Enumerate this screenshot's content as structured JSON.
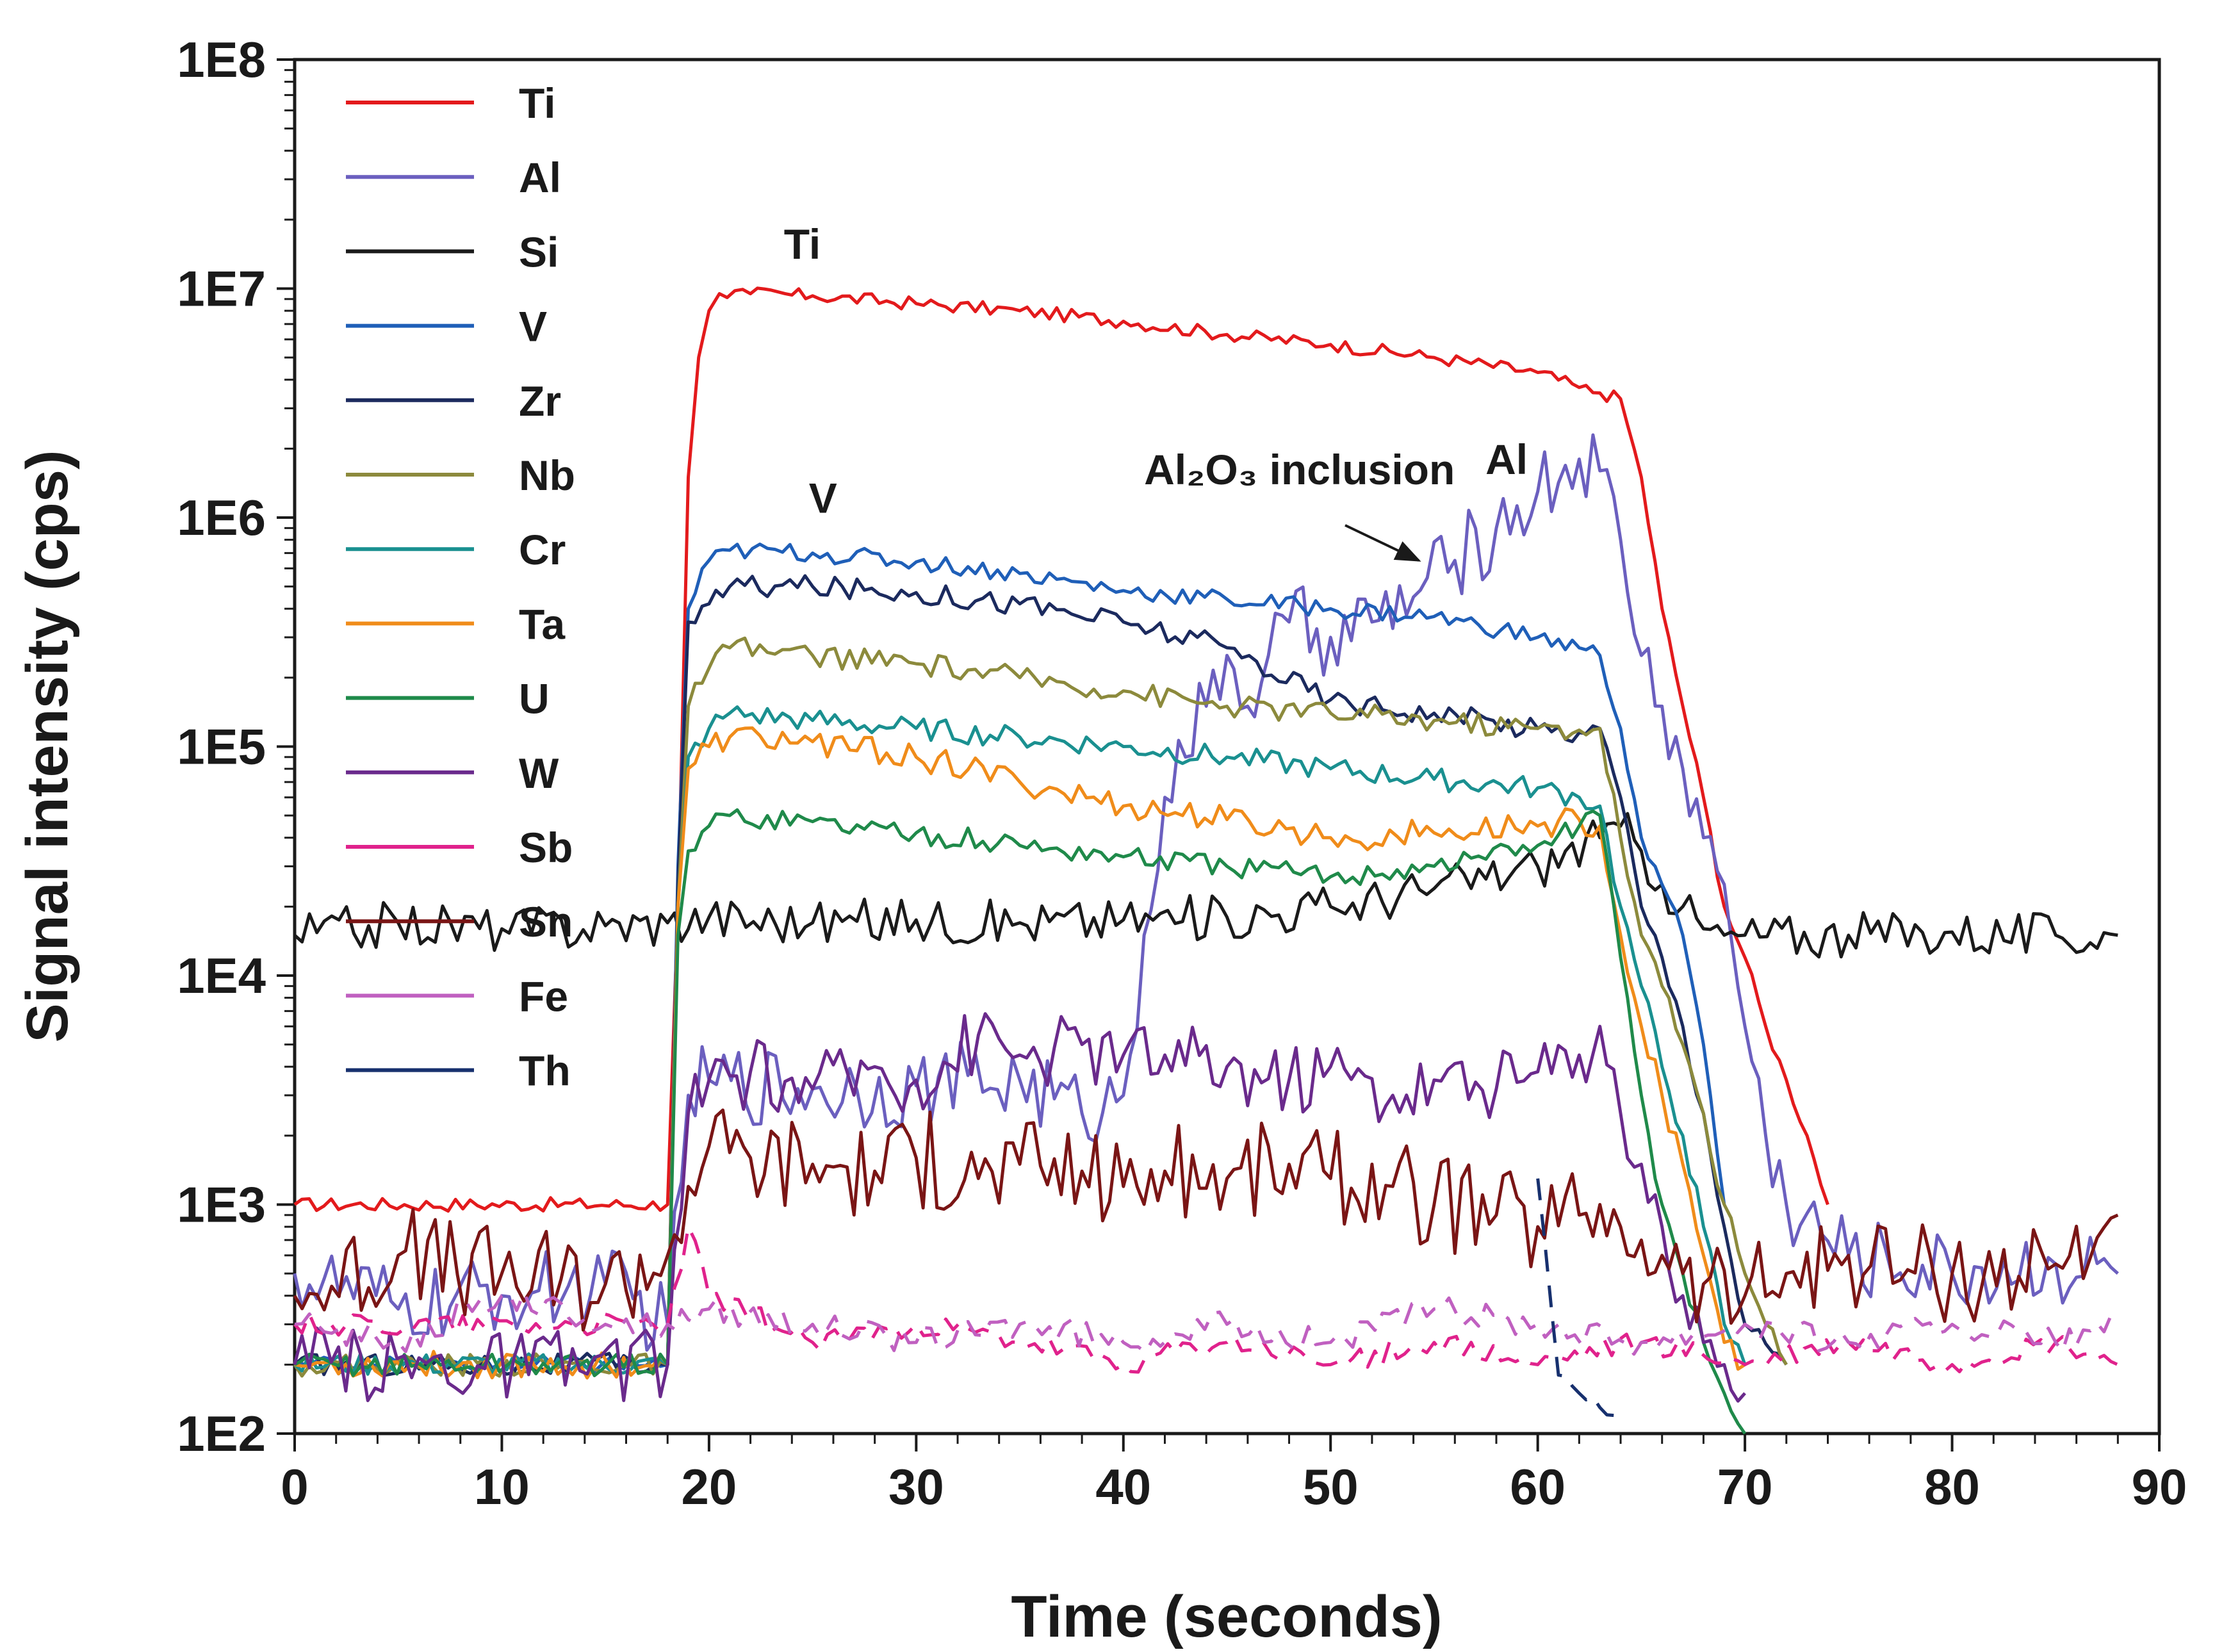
{
  "chart_data": {
    "type": "line",
    "title": "",
    "xlabel": "Time (seconds)",
    "ylabel": "Signal intensity (cps)",
    "xlim": [
      0,
      90
    ],
    "ylim": [
      100,
      100000000
    ],
    "yscale": "log",
    "x_ticks": [
      0,
      10,
      20,
      30,
      40,
      50,
      60,
      70,
      80,
      90
    ],
    "x_tick_labels": [
      "0",
      "10",
      "20",
      "30",
      "40",
      "50",
      "60",
      "70",
      "80",
      "90"
    ],
    "y_ticks": [
      100,
      1000,
      10000,
      100000,
      1000000,
      10000000,
      100000000
    ],
    "y_tick_labels": [
      "1E2",
      "1E3",
      "1E4",
      "1E5",
      "1E6",
      "1E7",
      "1E8"
    ],
    "legend_position": "top-left inside",
    "series": [
      {
        "name": "Ti",
        "color": "#e31a1c",
        "x": [
          0,
          18,
          18.5,
          19,
          19.5,
          20,
          20.5,
          22,
          25,
          30,
          35,
          40,
          45,
          50,
          55,
          60,
          62,
          63,
          64,
          65,
          66,
          67,
          68,
          69,
          70,
          71,
          72,
          73,
          74
        ],
        "values": [
          1000,
          1000,
          20000,
          1500000,
          5000000,
          8000000,
          9500000,
          9500000,
          9300000,
          8600000,
          8000000,
          7200000,
          6300000,
          5700000,
          5000000,
          4300000,
          3700000,
          3500000,
          3300000,
          1500000,
          400000,
          150000,
          60000,
          20000,
          12000,
          6000,
          3500,
          2000,
          1000
        ]
      },
      {
        "name": "Al",
        "color": "#6b5fbf",
        "x": [
          0,
          5,
          10,
          15,
          18,
          19,
          20,
          25,
          30,
          35,
          38,
          40,
          41,
          42,
          43,
          44,
          45,
          46,
          47,
          48,
          50,
          52,
          54,
          56,
          58,
          60,
          62,
          63,
          64,
          65,
          66,
          67,
          68,
          69,
          70,
          71,
          72,
          75,
          80,
          85,
          88
        ],
        "values": [
          500,
          350,
          400,
          450,
          300,
          3000,
          3500,
          3200,
          3300,
          3500,
          2500,
          3000,
          15000,
          60000,
          90000,
          150000,
          250000,
          150000,
          250000,
          350000,
          300000,
          350000,
          450000,
          650000,
          900000,
          1300000,
          1800000,
          1600000,
          800000,
          250000,
          150000,
          80000,
          40000,
          25000,
          6000,
          2000,
          1000,
          600,
          500,
          550,
          500
        ]
      },
      {
        "name": "Si",
        "color": "#1a1a1a",
        "x": [
          0,
          5,
          10,
          15,
          18,
          20,
          25,
          30,
          35,
          40,
          45,
          50,
          55,
          60,
          63,
          64,
          65,
          66,
          67,
          68,
          69,
          70,
          75,
          80,
          85,
          88
        ],
        "values": [
          15000,
          17000,
          16000,
          16500,
          17000,
          18000,
          17000,
          17500,
          17000,
          17500,
          18000,
          20000,
          24000,
          30000,
          40000,
          45000,
          35000,
          25000,
          20000,
          16000,
          15000,
          15000,
          15000,
          15500,
          15000,
          15000
        ]
      },
      {
        "name": "V",
        "color": "#1f5fb8",
        "x": [
          0,
          18,
          18.5,
          19,
          20,
          21,
          25,
          30,
          35,
          40,
          45,
          50,
          55,
          60,
          62,
          63,
          64,
          65,
          66,
          67,
          68,
          69
        ],
        "values": [
          200,
          200,
          30000,
          400000,
          650000,
          720000,
          700000,
          640000,
          570000,
          480000,
          440000,
          400000,
          370000,
          300000,
          270000,
          250000,
          120000,
          40000,
          25000,
          15000,
          5000,
          1000
        ]
      },
      {
        "name": "Zr",
        "color": "#1b2a5e",
        "x": [
          0,
          18,
          18.5,
          19,
          20,
          21,
          25,
          30,
          35,
          40,
          45,
          50,
          55,
          60,
          62,
          63,
          64,
          65,
          66,
          67,
          68,
          69,
          70,
          72
        ],
        "values": [
          200,
          200,
          25000,
          350000,
          420000,
          500000,
          500000,
          470000,
          420000,
          350000,
          270000,
          160000,
          140000,
          120000,
          115000,
          120000,
          60000,
          20000,
          12000,
          6000,
          2500,
          800,
          300,
          200
        ]
      },
      {
        "name": "Nb",
        "color": "#8c8a3c",
        "x": [
          0,
          18,
          18.5,
          19,
          20,
          21,
          25,
          30,
          35,
          40,
          45,
          50,
          55,
          60,
          62,
          63,
          64,
          65,
          66,
          67,
          68,
          69,
          70,
          71,
          72
        ],
        "values": [
          200,
          200,
          20000,
          150000,
          220000,
          270000,
          250000,
          230000,
          200000,
          175000,
          150000,
          140000,
          130000,
          120000,
          118000,
          120000,
          40000,
          15000,
          9000,
          5000,
          2500,
          1000,
          500,
          300,
          200
        ]
      },
      {
        "name": "Cr",
        "color": "#1a9090",
        "x": [
          0,
          18,
          18.5,
          19,
          20,
          21,
          25,
          30,
          35,
          40,
          45,
          50,
          55,
          60,
          62,
          63,
          64,
          65,
          66,
          67,
          68,
          69,
          70
        ],
        "values": [
          200,
          200,
          20000,
          90000,
          120000,
          140000,
          130000,
          120000,
          110000,
          100000,
          90000,
          80000,
          72000,
          66000,
          60000,
          55000,
          20000,
          9000,
          4000,
          2000,
          800,
          300,
          200
        ]
      },
      {
        "name": "Ta",
        "color": "#f08c1a",
        "x": [
          0,
          18,
          18.5,
          19,
          20,
          21,
          25,
          30,
          35,
          40,
          45,
          50,
          55,
          60,
          62,
          63,
          64,
          65,
          66,
          67,
          68,
          69,
          70
        ],
        "values": [
          200,
          200,
          20000,
          80000,
          100000,
          110000,
          105000,
          90000,
          70000,
          55000,
          48000,
          40000,
          42000,
          45000,
          48000,
          45000,
          15000,
          6000,
          3000,
          1500,
          600,
          250,
          200
        ]
      },
      {
        "name": "U",
        "color": "#1f8a4a",
        "x": [
          0,
          18,
          18.5,
          19,
          20,
          21,
          25,
          30,
          35,
          40,
          45,
          50,
          55,
          60,
          62,
          63,
          64,
          65,
          66,
          67,
          68,
          69,
          70
        ],
        "values": [
          200,
          200,
          15000,
          35000,
          45000,
          50000,
          47000,
          42000,
          37000,
          33000,
          30000,
          27000,
          30000,
          37000,
          45000,
          50000,
          12000,
          3000,
          1000,
          500,
          250,
          150,
          100
        ]
      },
      {
        "name": "W",
        "color": "#6a2a8c",
        "x": [
          0,
          18,
          19,
          20,
          22,
          25,
          28,
          30,
          33,
          35,
          38,
          40,
          42,
          45,
          48,
          50,
          53,
          55,
          58,
          60,
          62,
          63,
          64,
          65,
          66,
          67,
          68,
          69,
          70
        ],
        "values": [
          200,
          200,
          2500,
          3500,
          3800,
          3200,
          4000,
          3500,
          5500,
          4500,
          5000,
          4500,
          4500,
          4000,
          3500,
          4000,
          3000,
          3500,
          3200,
          3800,
          4500,
          6000,
          2500,
          1500,
          800,
          400,
          250,
          200,
          150
        ]
      },
      {
        "name": "Sb",
        "color": "#e0228c",
        "x": [
          0,
          18,
          19,
          20,
          25,
          30,
          35,
          40,
          45,
          50,
          55,
          60,
          65,
          70,
          75,
          80,
          85,
          88
        ],
        "values": [
          300,
          300,
          800,
          400,
          250,
          300,
          250,
          200,
          250,
          200,
          250,
          200,
          250,
          200,
          250,
          200,
          250,
          200
        ]
      },
      {
        "name": "Sn",
        "color": "#7a1515",
        "x": [
          0,
          5,
          10,
          15,
          18,
          19,
          20,
          22,
          25,
          28,
          30,
          33,
          35,
          38,
          40,
          42,
          45,
          48,
          50,
          53,
          55,
          58,
          60,
          62,
          63,
          64,
          65,
          66,
          67,
          68,
          70,
          72,
          75,
          80,
          85,
          88
        ],
        "values": [
          400,
          600,
          500,
          450,
          600,
          1200,
          1800,
          1600,
          1500,
          1400,
          1600,
          1300,
          1500,
          1400,
          1200,
          1400,
          1300,
          1500,
          1300,
          1200,
          1000,
          900,
          800,
          900,
          1000,
          800,
          700,
          600,
          500,
          450,
          400,
          500,
          600,
          500,
          550,
          900
        ]
      },
      {
        "name": "Fe",
        "color": "#c060c0",
        "x": [
          0,
          5,
          10,
          15,
          18,
          20,
          25,
          30,
          35,
          40,
          45,
          50,
          55,
          60,
          65,
          70,
          75,
          80,
          85,
          88
        ],
        "values": [
          300,
          250,
          400,
          300,
          300,
          350,
          300,
          250,
          300,
          250,
          300,
          250,
          350,
          300,
          250,
          300,
          250,
          300,
          250,
          300
        ]
      },
      {
        "name": "Th",
        "color": "#17306e",
        "x": [
          60,
          61,
          62,
          63,
          64
        ],
        "values": [
          1300,
          180,
          150,
          130,
          110
        ]
      }
    ],
    "annotations": [
      {
        "text": "Ti",
        "x": 24.5,
        "y": 13500000
      },
      {
        "text": "V",
        "x": 25.5,
        "y": 1050000
      },
      {
        "text": "Al₂O₃ inclusion",
        "x": 48.5,
        "y": 1400000
      },
      {
        "text": "Al",
        "x": 58.5,
        "y": 1550000
      }
    ]
  }
}
